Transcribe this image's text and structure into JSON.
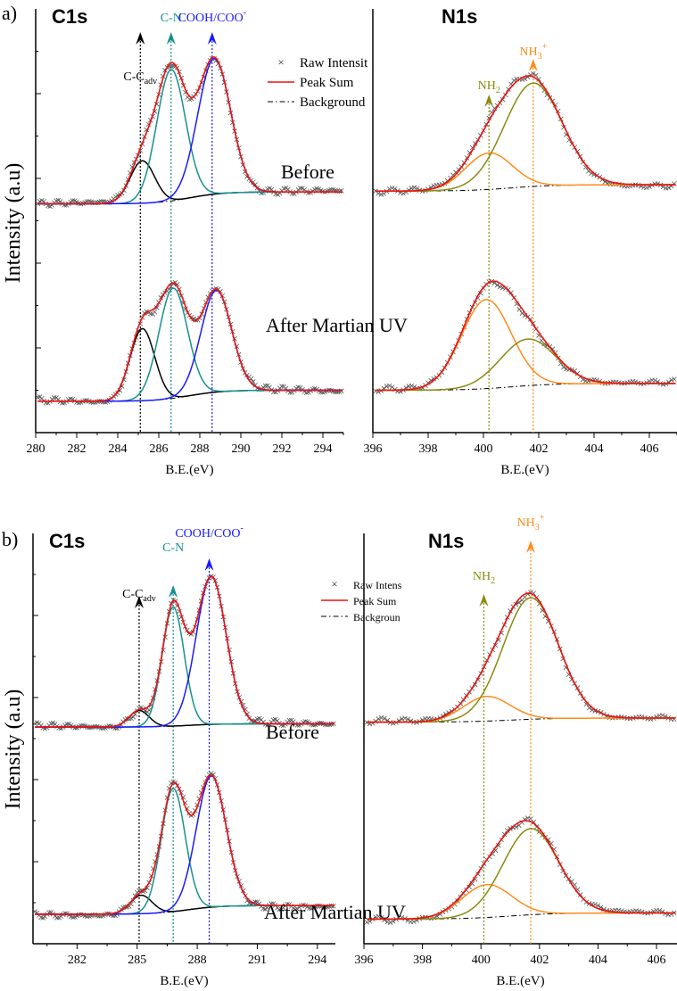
{
  "chart_data": [
    {
      "type": "line",
      "panel_label": "a)",
      "ylabel": "Intensity (a.u)",
      "plots": [
        {
          "title": "C1s",
          "xlabel": "B.E.(eV)",
          "xlim": [
            280,
            295
          ],
          "ylim": [
            0,
            100
          ],
          "xticks": [
            280,
            282,
            284,
            286,
            288,
            290,
            292,
            294
          ],
          "bg_step_center": 287.5,
          "annotations": [
            {
              "text": "C-C",
              "sub": "adv",
              "sup": "",
              "x": 285.1,
              "color": "#000000"
            },
            {
              "text": "C-N",
              "sub": "",
              "sup": "",
              "x": 286.6,
              "color": "#178f8f"
            },
            {
              "text": "COOH/COO",
              "sub": "",
              "sup": "-",
              "x": 288.6,
              "color": "#1a1aff"
            }
          ],
          "legend": {
            "position": "top-right",
            "items": [
              "Raw Intensit",
              "Peak Sum",
              "Background"
            ]
          },
          "spectra": [
            {
              "label": "Before",
              "bg_left": 54,
              "bg_right": 56.8,
              "components": [
                {
                  "name": "C-C adv",
                  "center": 285.2,
                  "sigma": 0.6,
                  "amp": 10,
                  "color": "#000000"
                },
                {
                  "name": "C-N",
                  "center": 286.6,
                  "sigma": 0.7,
                  "amp": 31,
                  "color": "#178f8f"
                },
                {
                  "name": "COOH/COO-",
                  "center": 288.7,
                  "sigma": 0.8,
                  "amp": 32,
                  "color": "#1a1aff"
                }
              ]
            },
            {
              "label": "After Martian UV",
              "bg_left": 7.4,
              "bg_right": 10,
              "components": [
                {
                  "name": "C-C adv",
                  "center": 285.2,
                  "sigma": 0.6,
                  "amp": 17,
                  "color": "#000000"
                },
                {
                  "name": "C-N",
                  "center": 286.7,
                  "sigma": 0.7,
                  "amp": 26,
                  "color": "#178f8f"
                },
                {
                  "name": "COOH/COO-",
                  "center": 288.8,
                  "sigma": 0.75,
                  "amp": 24,
                  "color": "#1a1aff"
                }
              ]
            }
          ]
        },
        {
          "title": "N1s",
          "xlabel": "B.E.(eV)",
          "xlim": [
            396,
            407
          ],
          "ylim": [
            0,
            100
          ],
          "xticks": [
            396,
            398,
            400,
            402,
            404,
            406
          ],
          "bg_step_center": 401,
          "annotations": [
            {
              "text": "NH",
              "sub": "2",
              "sup": "",
              "x": 400.2,
              "color": "#8a8a10"
            },
            {
              "text": "NH",
              "sub": "3",
              "sup": "+",
              "x": 401.8,
              "color": "#ff8c1a"
            }
          ],
          "spectra": [
            {
              "label": "",
              "bg_left": 57,
              "bg_right": 58.5,
              "components": [
                {
                  "name": "NH2",
                  "center": 400.2,
                  "sigma": 0.85,
                  "amp": 8.6,
                  "color": "#ff8c1a"
                },
                {
                  "name": "NH3+",
                  "center": 401.8,
                  "sigma": 1.05,
                  "amp": 24.4,
                  "color": "#8a8a10"
                }
              ]
            },
            {
              "label": "",
              "bg_left": 10,
              "bg_right": 11.6,
              "components": [
                {
                  "name": "NH2",
                  "center": 400.1,
                  "sigma": 0.9,
                  "amp": 21,
                  "color": "#ff8c1a"
                },
                {
                  "name": "NH3+",
                  "center": 401.6,
                  "sigma": 1.0,
                  "amp": 11,
                  "color": "#8a8a10"
                }
              ]
            }
          ]
        }
      ]
    },
    {
      "type": "line",
      "panel_label": "b)",
      "ylabel": "Intensity (a.u)",
      "plots": [
        {
          "title": "C1s",
          "xlabel": "B.E.(eV)",
          "xlim": [
            279.8,
            294.9
          ],
          "ylim": [
            0,
            100
          ],
          "xticks": [
            282,
            285,
            288,
            291,
            294
          ],
          "bg_step_center": 287.5,
          "annotations": [
            {
              "text": "C-C",
              "sub": "adv",
              "sup": "",
              "x": 285.1,
              "color": "#000000"
            },
            {
              "text": "C-N",
              "sub": "",
              "sup": "",
              "x": 286.8,
              "color": "#178f8f"
            },
            {
              "text": "COOH/COO",
              "sub": "",
              "sup": "-",
              "x": 288.6,
              "color": "#1a1aff"
            }
          ],
          "legend": {
            "position": "top-right",
            "items": [
              "Raw Intens",
              "Peak Sum",
              "Backgroun"
            ]
          },
          "spectra": [
            {
              "label": "Before",
              "bg_left": 52.8,
              "bg_right": 53.6,
              "components": [
                {
                  "name": "C-C adv",
                  "center": 285.1,
                  "sigma": 0.5,
                  "amp": 4,
                  "color": "#000000"
                },
                {
                  "name": "C-N",
                  "center": 286.8,
                  "sigma": 0.55,
                  "amp": 29,
                  "color": "#178f8f"
                },
                {
                  "name": "COOH/COO-",
                  "center": 288.7,
                  "sigma": 0.75,
                  "amp": 36,
                  "color": "#1a1aff"
                }
              ]
            },
            {
              "label": "After Martian UV",
              "bg_left": 7.2,
              "bg_right": 9.3,
              "components": [
                {
                  "name": "C-C adv",
                  "center": 285.2,
                  "sigma": 0.55,
                  "amp": 4.5,
                  "color": "#000000"
                },
                {
                  "name": "C-N",
                  "center": 286.8,
                  "sigma": 0.6,
                  "amp": 30,
                  "color": "#178f8f"
                },
                {
                  "name": "COOH/COO-",
                  "center": 288.7,
                  "sigma": 0.75,
                  "amp": 32,
                  "color": "#1a1aff"
                }
              ]
            }
          ]
        },
        {
          "title": "N1s",
          "xlabel": "B.E.(eV)",
          "xlim": [
            396,
            406.7
          ],
          "ylim": [
            0,
            100
          ],
          "xticks": [
            396,
            398,
            400,
            402,
            404,
            406
          ],
          "bg_step_center": 401,
          "annotations": [
            {
              "text": "NH",
              "sub": "2",
              "sup": "",
              "x": 400.1,
              "color": "#8a8a10"
            },
            {
              "text": "NH",
              "sub": "3",
              "sup": "+",
              "x": 401.7,
              "color": "#ff8c1a"
            }
          ],
          "spectra": [
            {
              "label": "",
              "bg_left": 54,
              "bg_right": 55,
              "components": [
                {
                  "name": "NH2",
                  "center": 400.2,
                  "sigma": 0.8,
                  "amp": 6,
                  "color": "#ff8c1a"
                },
                {
                  "name": "NH3+",
                  "center": 401.7,
                  "sigma": 0.95,
                  "amp": 29.6,
                  "color": "#8a8a10"
                }
              ]
            },
            {
              "label": "",
              "bg_left": 6,
              "bg_right": 7.5,
              "components": [
                {
                  "name": "NH2",
                  "center": 400.2,
                  "sigma": 0.85,
                  "amp": 8,
                  "color": "#ff8c1a"
                },
                {
                  "name": "NH3+",
                  "center": 401.7,
                  "sigma": 0.95,
                  "amp": 21,
                  "color": "#8a8a10"
                }
              ]
            }
          ]
        }
      ]
    }
  ],
  "colors": {
    "raw": "#555555",
    "sum": "#ee1111",
    "background": "#000000"
  }
}
